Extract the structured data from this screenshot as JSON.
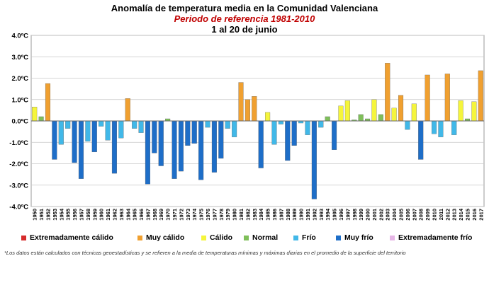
{
  "header": {
    "title": "Anomalía de temperatura  media en la Comunidad Valenciana",
    "subtitle": "Periodo de referencia 1981-2010",
    "period": "1 al 20 de junio"
  },
  "legend": {
    "items": [
      {
        "label": "Extremadamente cálido",
        "color": "#d62b2b"
      },
      {
        "label": "Muy cálido",
        "color": "#f0a030"
      },
      {
        "label": "Cálido",
        "color": "#f5f53c"
      },
      {
        "label": "Normal",
        "color": "#7fbf5a"
      },
      {
        "label": "Frío",
        "color": "#41b8e8"
      },
      {
        "label": "Muy frío",
        "color": "#1e6ec8"
      },
      {
        "label": "Extremadamente frío",
        "color": "#e6b6e6"
      }
    ]
  },
  "footnote": "*Los datos están calculados con técnicas geoestadísticas y se refieren a la media de temperaturas mínimas y máximas diarias en el promedio de la superficie del territorio",
  "chart_data": {
    "type": "bar",
    "ylim": [
      -4.0,
      4.0
    ],
    "yticks": [
      "4.0ºC",
      "3.0ºC",
      "2.0ºC",
      "1.0ºC",
      "0.0ºC",
      "-1.0ºC",
      "-2.0ºC",
      "-3.0ºC",
      "-4.0ºC"
    ],
    "grid": true,
    "categories": [
      "1950",
      "1951",
      "1952",
      "1953",
      "1954",
      "1955",
      "1956",
      "1957",
      "1958",
      "1959",
      "1960",
      "1961",
      "1962",
      "1963",
      "1964",
      "1965",
      "1966",
      "1967",
      "1968",
      "1969",
      "1970",
      "1971",
      "1972",
      "1973",
      "1974",
      "1975",
      "1976",
      "1977",
      "1978",
      "1979",
      "1980",
      "1981",
      "1982",
      "1983",
      "1984",
      "1985",
      "1986",
      "1987",
      "1988",
      "1989",
      "1990",
      "1991",
      "1992",
      "1993",
      "1994",
      "1995",
      "1996",
      "1997",
      "1998",
      "1999",
      "2000",
      "2001",
      "2002",
      "2003",
      "2004",
      "2005",
      "2006",
      "2007",
      "2008",
      "2009",
      "2010",
      "2011",
      "2012",
      "2013",
      "2014",
      "2015",
      "2016",
      "2017"
    ],
    "values": [
      0.65,
      0.2,
      1.75,
      -1.8,
      -1.1,
      -0.35,
      -1.95,
      -2.7,
      -0.95,
      -1.45,
      -0.25,
      -0.9,
      -2.45,
      -0.8,
      1.05,
      -0.35,
      -0.55,
      -2.95,
      -1.5,
      -2.1,
      0.1,
      -2.7,
      -2.35,
      -1.15,
      -1.05,
      -2.75,
      -0.3,
      -2.4,
      -1.75,
      -0.35,
      -0.75,
      1.8,
      1.0,
      1.15,
      -2.2,
      0.4,
      -1.1,
      -0.15,
      -1.85,
      -1.15,
      -0.1,
      -0.65,
      -3.65,
      -0.3,
      0.2,
      -1.35,
      0.7,
      0.95,
      0.05,
      0.3,
      0.1,
      1.0,
      0.3,
      2.7,
      0.6,
      1.2,
      -0.4,
      0.8,
      -1.8,
      2.15,
      -0.6,
      -0.75,
      2.2,
      -0.65,
      0.95,
      0.1,
      0.9,
      2.35
    ],
    "classes": [
      "Cálido",
      "Normal",
      "Muy cálido",
      "Muy frío",
      "Frío",
      "Frío",
      "Muy frío",
      "Muy frío",
      "Frío",
      "Muy frío",
      "Frío",
      "Frío",
      "Muy frío",
      "Frío",
      "Muy cálido",
      "Frío",
      "Frío",
      "Muy frío",
      "Muy frío",
      "Muy frío",
      "Normal",
      "Muy frío",
      "Muy frío",
      "Muy frío",
      "Muy frío",
      "Muy frío",
      "Frío",
      "Muy frío",
      "Muy frío",
      "Frío",
      "Frío",
      "Muy cálido",
      "Muy cálido",
      "Muy cálido",
      "Muy frío",
      "Cálido",
      "Frío",
      "Frío",
      "Muy frío",
      "Muy frío",
      "Frío",
      "Frío",
      "Muy frío",
      "Frío",
      "Normal",
      "Muy frío",
      "Cálido",
      "Cálido",
      "Normal",
      "Normal",
      "Normal",
      "Cálido",
      "Normal",
      "Muy cálido",
      "Cálido",
      "Muy cálido",
      "Frío",
      "Cálido",
      "Muy frío",
      "Muy cálido",
      "Frío",
      "Frío",
      "Muy cálido",
      "Frío",
      "Cálido",
      "Normal",
      "Cálido",
      "Muy cálido"
    ]
  }
}
